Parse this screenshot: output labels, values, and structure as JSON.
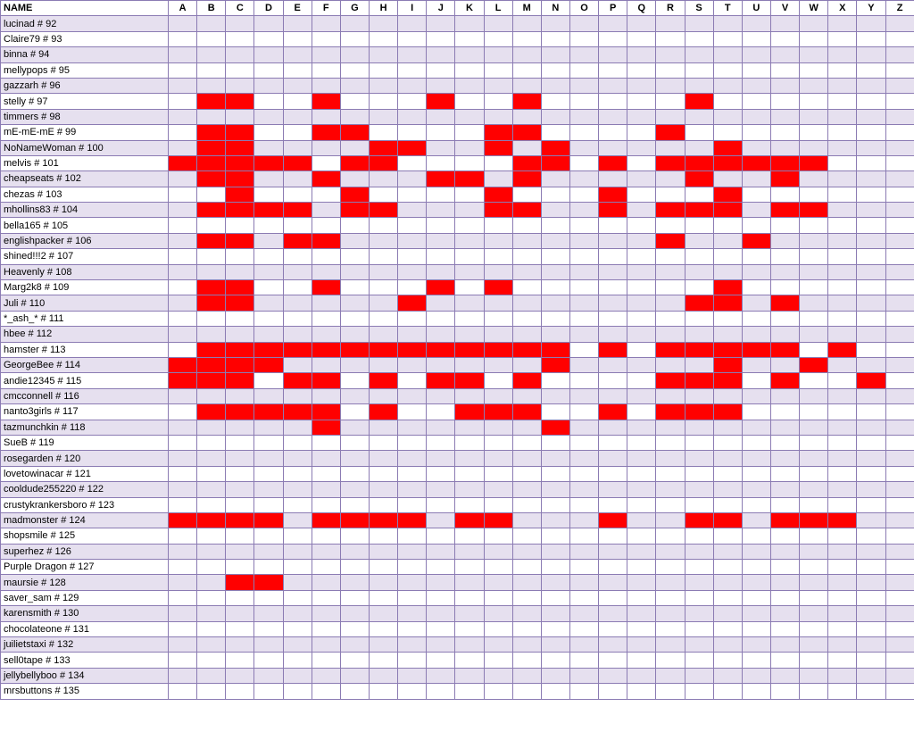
{
  "header": {
    "name_label": "NAME",
    "letters": [
      "A",
      "B",
      "C",
      "D",
      "E",
      "F",
      "G",
      "H",
      "I",
      "J",
      "K",
      "L",
      "M",
      "N",
      "O",
      "P",
      "Q",
      "R",
      "S",
      "T",
      "U",
      "V",
      "W",
      "X",
      "Y",
      "Z"
    ]
  },
  "colors": {
    "marked": "#ff0000",
    "row_shade": "#e6e0ef",
    "grid": "#8b7bb3"
  },
  "rows": [
    {
      "name": "lucinad # 92",
      "marked": []
    },
    {
      "name": "Claire79 # 93",
      "marked": []
    },
    {
      "name": "binna # 94",
      "marked": []
    },
    {
      "name": "mellypops # 95",
      "marked": []
    },
    {
      "name": "gazzarh # 96",
      "marked": []
    },
    {
      "name": "stelly # 97",
      "marked": [
        "B",
        "C",
        "F",
        "J",
        "M",
        "S"
      ]
    },
    {
      "name": "timmers # 98",
      "marked": []
    },
    {
      "name": "mE-mE-mE # 99",
      "marked": [
        "B",
        "C",
        "F",
        "G",
        "L",
        "M",
        "R"
      ]
    },
    {
      "name": "NoNameWoman # 100",
      "marked": [
        "B",
        "C",
        "H",
        "I",
        "L",
        "N",
        "T"
      ]
    },
    {
      "name": "melvis # 101",
      "marked": [
        "A",
        "B",
        "C",
        "D",
        "E",
        "G",
        "H",
        "M",
        "N",
        "P",
        "R",
        "S",
        "T",
        "U",
        "V",
        "W"
      ]
    },
    {
      "name": "cheapseats # 102",
      "marked": [
        "B",
        "C",
        "F",
        "J",
        "K",
        "M",
        "S",
        "V"
      ]
    },
    {
      "name": "chezas # 103",
      "marked": [
        "C",
        "G",
        "L",
        "P",
        "T"
      ]
    },
    {
      "name": "mhollins83 # 104",
      "marked": [
        "B",
        "C",
        "D",
        "E",
        "G",
        "H",
        "L",
        "M",
        "P",
        "R",
        "S",
        "T",
        "V",
        "W"
      ]
    },
    {
      "name": "bella165 # 105",
      "marked": []
    },
    {
      "name": "englishpacker # 106",
      "marked": [
        "B",
        "C",
        "E",
        "F",
        "R",
        "U"
      ]
    },
    {
      "name": "shined!!!2 # 107",
      "marked": []
    },
    {
      "name": "Heavenly # 108",
      "marked": []
    },
    {
      "name": "Marg2k8 # 109",
      "marked": [
        "B",
        "C",
        "F",
        "J",
        "L",
        "T"
      ]
    },
    {
      "name": "Juli # 110",
      "marked": [
        "B",
        "C",
        "I",
        "S",
        "T",
        "V"
      ]
    },
    {
      "name": "*_ash_* # 111",
      "marked": []
    },
    {
      "name": "hbee # 112",
      "marked": []
    },
    {
      "name": "hamster # 113",
      "marked": [
        "B",
        "C",
        "D",
        "E",
        "F",
        "G",
        "H",
        "I",
        "J",
        "K",
        "L",
        "M",
        "N",
        "P",
        "R",
        "S",
        "T",
        "U",
        "V",
        "X"
      ]
    },
    {
      "name": "GeorgeBee # 114",
      "marked": [
        "A",
        "B",
        "C",
        "D",
        "N",
        "T",
        "W"
      ]
    },
    {
      "name": "andie12345 # 115",
      "marked": [
        "A",
        "B",
        "C",
        "E",
        "F",
        "H",
        "J",
        "K",
        "M",
        "R",
        "S",
        "T",
        "V",
        "Y"
      ]
    },
    {
      "name": "cmcconnell # 116",
      "marked": []
    },
    {
      "name": "nanto3girls # 117",
      "marked": [
        "B",
        "C",
        "D",
        "E",
        "F",
        "H",
        "K",
        "L",
        "M",
        "P",
        "R",
        "S",
        "T"
      ]
    },
    {
      "name": "tazmunchkin # 118",
      "marked": [
        "F",
        "N"
      ]
    },
    {
      "name": "SueB # 119",
      "marked": []
    },
    {
      "name": "rosegarden # 120",
      "marked": []
    },
    {
      "name": "lovetowinacar # 121",
      "marked": []
    },
    {
      "name": "cooldude255220 # 122",
      "marked": []
    },
    {
      "name": "crustykrankersboro # 123",
      "marked": []
    },
    {
      "name": "madmonster # 124",
      "marked": [
        "A",
        "B",
        "C",
        "D",
        "F",
        "G",
        "H",
        "I",
        "K",
        "L",
        "P",
        "S",
        "T",
        "V",
        "W",
        "X"
      ]
    },
    {
      "name": "shopsmile # 125",
      "marked": []
    },
    {
      "name": "superhez # 126",
      "marked": []
    },
    {
      "name": "Purple Dragon # 127",
      "marked": []
    },
    {
      "name": "maursie # 128",
      "marked": [
        "C",
        "D"
      ]
    },
    {
      "name": "saver_sam # 129",
      "marked": []
    },
    {
      "name": "karensmith # 130",
      "marked": []
    },
    {
      "name": "chocolateone # 131",
      "marked": []
    },
    {
      "name": "juilietstaxi # 132",
      "marked": []
    },
    {
      "name": "sell0tape # 133",
      "marked": []
    },
    {
      "name": "jellybellyboo # 134",
      "marked": []
    },
    {
      "name": "mrsbuttons # 135",
      "marked": []
    }
  ]
}
